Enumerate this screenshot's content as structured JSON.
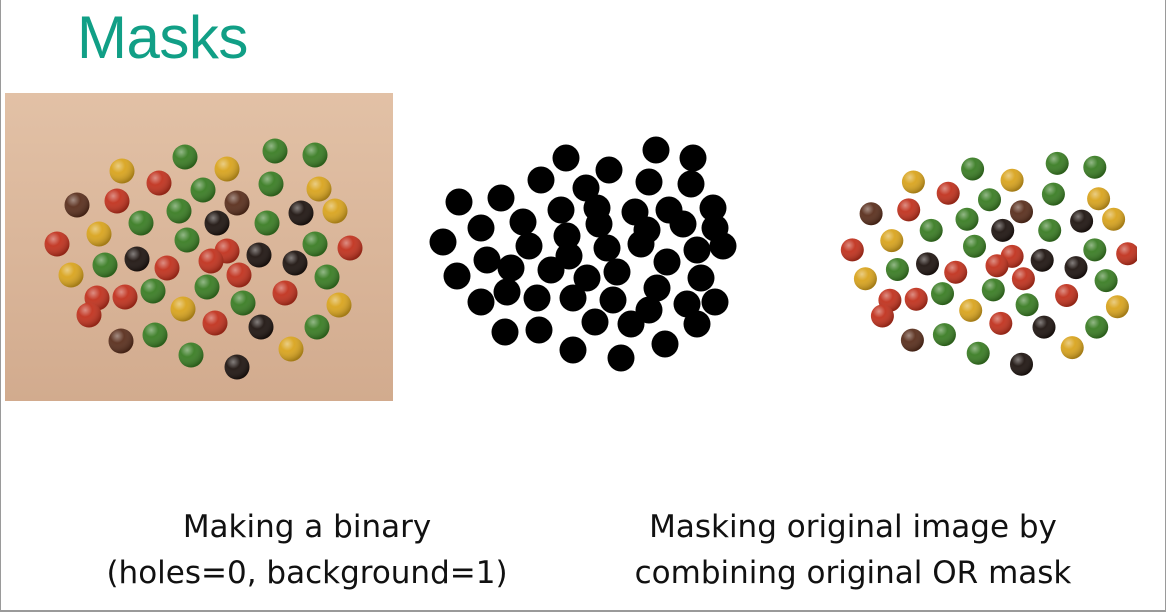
{
  "slide": {
    "title": "Masks"
  },
  "captions": {
    "left": [
      "Making a binary",
      "(holes=0, background=1)"
    ],
    "right": [
      "Masking original image by",
      "combining original OR mask"
    ]
  },
  "colors": {
    "title": "#119f86",
    "photo_background": "#d9b49a",
    "mask_fill": "#000000",
    "candy_red": "#c1321e",
    "candy_orange": "#d8521d",
    "candy_yellow": "#d9a41e",
    "candy_green": "#3a7d24",
    "candy_brown": "#5a2f1d",
    "candy_dark": "#1f1511"
  },
  "panels": {
    "original_icon": "candy-photo",
    "mask_icon": "binary-mask",
    "result_icon": "masked-candy-result"
  }
}
